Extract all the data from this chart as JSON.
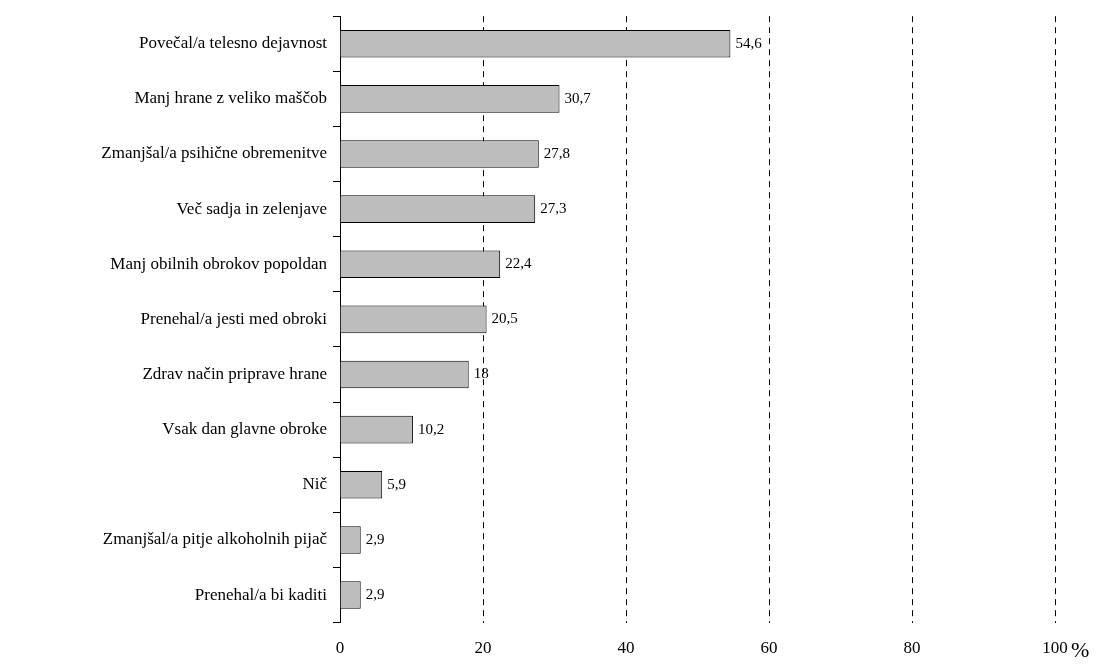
{
  "chart_data": {
    "type": "bar",
    "orientation": "horizontal",
    "xlabel": "%",
    "categories": [
      "Povečal/a telesno dejavnost",
      "Manj hrane z veliko maščob",
      "Zmanjšal/a psihične obremenitve",
      "Več sadja in zelenjave",
      "Manj obilnih obrokov popoldan",
      "Prenehal/a jesti med obroki",
      "Zdrav način priprave hrane",
      "Vsak dan glavne obroke",
      "Nič",
      "Zmanjšal/a pitje alkoholnih pijač",
      "Prenehal/a bi kaditi"
    ],
    "values": [
      54.6,
      30.7,
      27.8,
      27.3,
      22.4,
      20.5,
      18,
      10.2,
      5.9,
      2.9,
      2.9
    ],
    "value_labels": [
      "54,6",
      "30,7",
      "27,8",
      "27,3",
      "22,4",
      "20,5",
      "18",
      "10,2",
      "5,9",
      "2,9",
      "2,9"
    ],
    "color": "#bdbdbd",
    "xlim": [
      0,
      100
    ],
    "xticks": [
      0,
      20,
      40,
      60,
      80,
      100
    ],
    "grid": "x",
    "line_style": "dashed",
    "legend": false
  }
}
